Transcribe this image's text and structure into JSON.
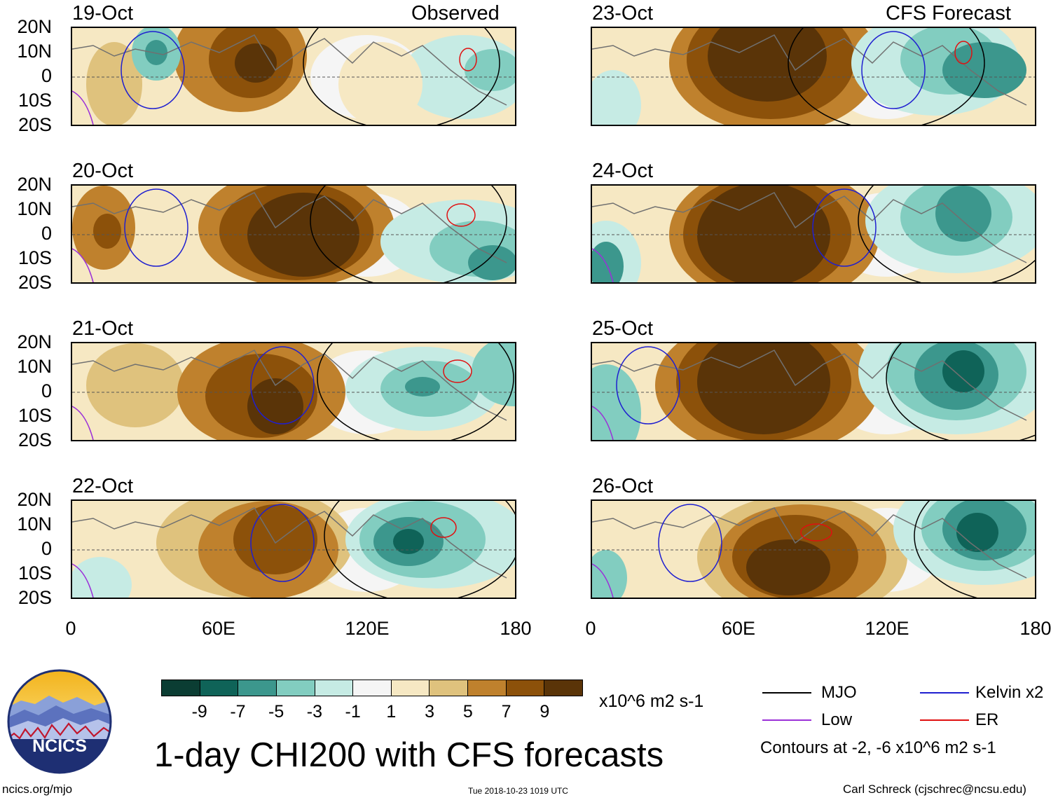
{
  "headers": {
    "left": "Observed",
    "right": "CFS Forecast"
  },
  "panels": {
    "left": [
      {
        "date": "19-Oct"
      },
      {
        "date": "20-Oct"
      },
      {
        "date": "21-Oct"
      },
      {
        "date": "22-Oct"
      }
    ],
    "right": [
      {
        "date": "23-Oct"
      },
      {
        "date": "24-Oct"
      },
      {
        "date": "25-Oct"
      },
      {
        "date": "26-Oct"
      }
    ]
  },
  "y_axis_labels": [
    "20N",
    "10N",
    "0",
    "10S",
    "20S"
  ],
  "x_axis_labels": [
    "0",
    "60E",
    "120E",
    "180"
  ],
  "colorbar": {
    "colors": [
      "#0b3d33",
      "#0f6358",
      "#3c978d",
      "#82cdc0",
      "#c6ebe4",
      "#f5f5f5",
      "#f6e8c3",
      "#dfc27d",
      "#bf812d",
      "#8c510a",
      "#5a3408"
    ],
    "ticks": [
      "-9",
      "-7",
      "-5",
      "-3",
      "-1",
      "1",
      "3",
      "5",
      "7",
      "9"
    ],
    "units": "x10^6 m2 s-1"
  },
  "legend": {
    "items": [
      {
        "label": "MJO",
        "color": "#000000"
      },
      {
        "label": "Kelvin x2",
        "color": "#1f1fd0"
      },
      {
        "label": "Low",
        "color": "#9b30d8"
      },
      {
        "label": "ER",
        "color": "#e01010"
      }
    ],
    "contours_note": "Contours at -2, -6 x10^6 m2 s-1"
  },
  "logo": {
    "text": "NCICS"
  },
  "title": "1-day CHI200 with CFS forecasts",
  "footer": {
    "url": "ncics.org/mjo",
    "timestamp": "Tue 2018-10-23 1019 UTC",
    "author": "Carl Schreck (cjschrec@ncsu.edu)"
  }
}
